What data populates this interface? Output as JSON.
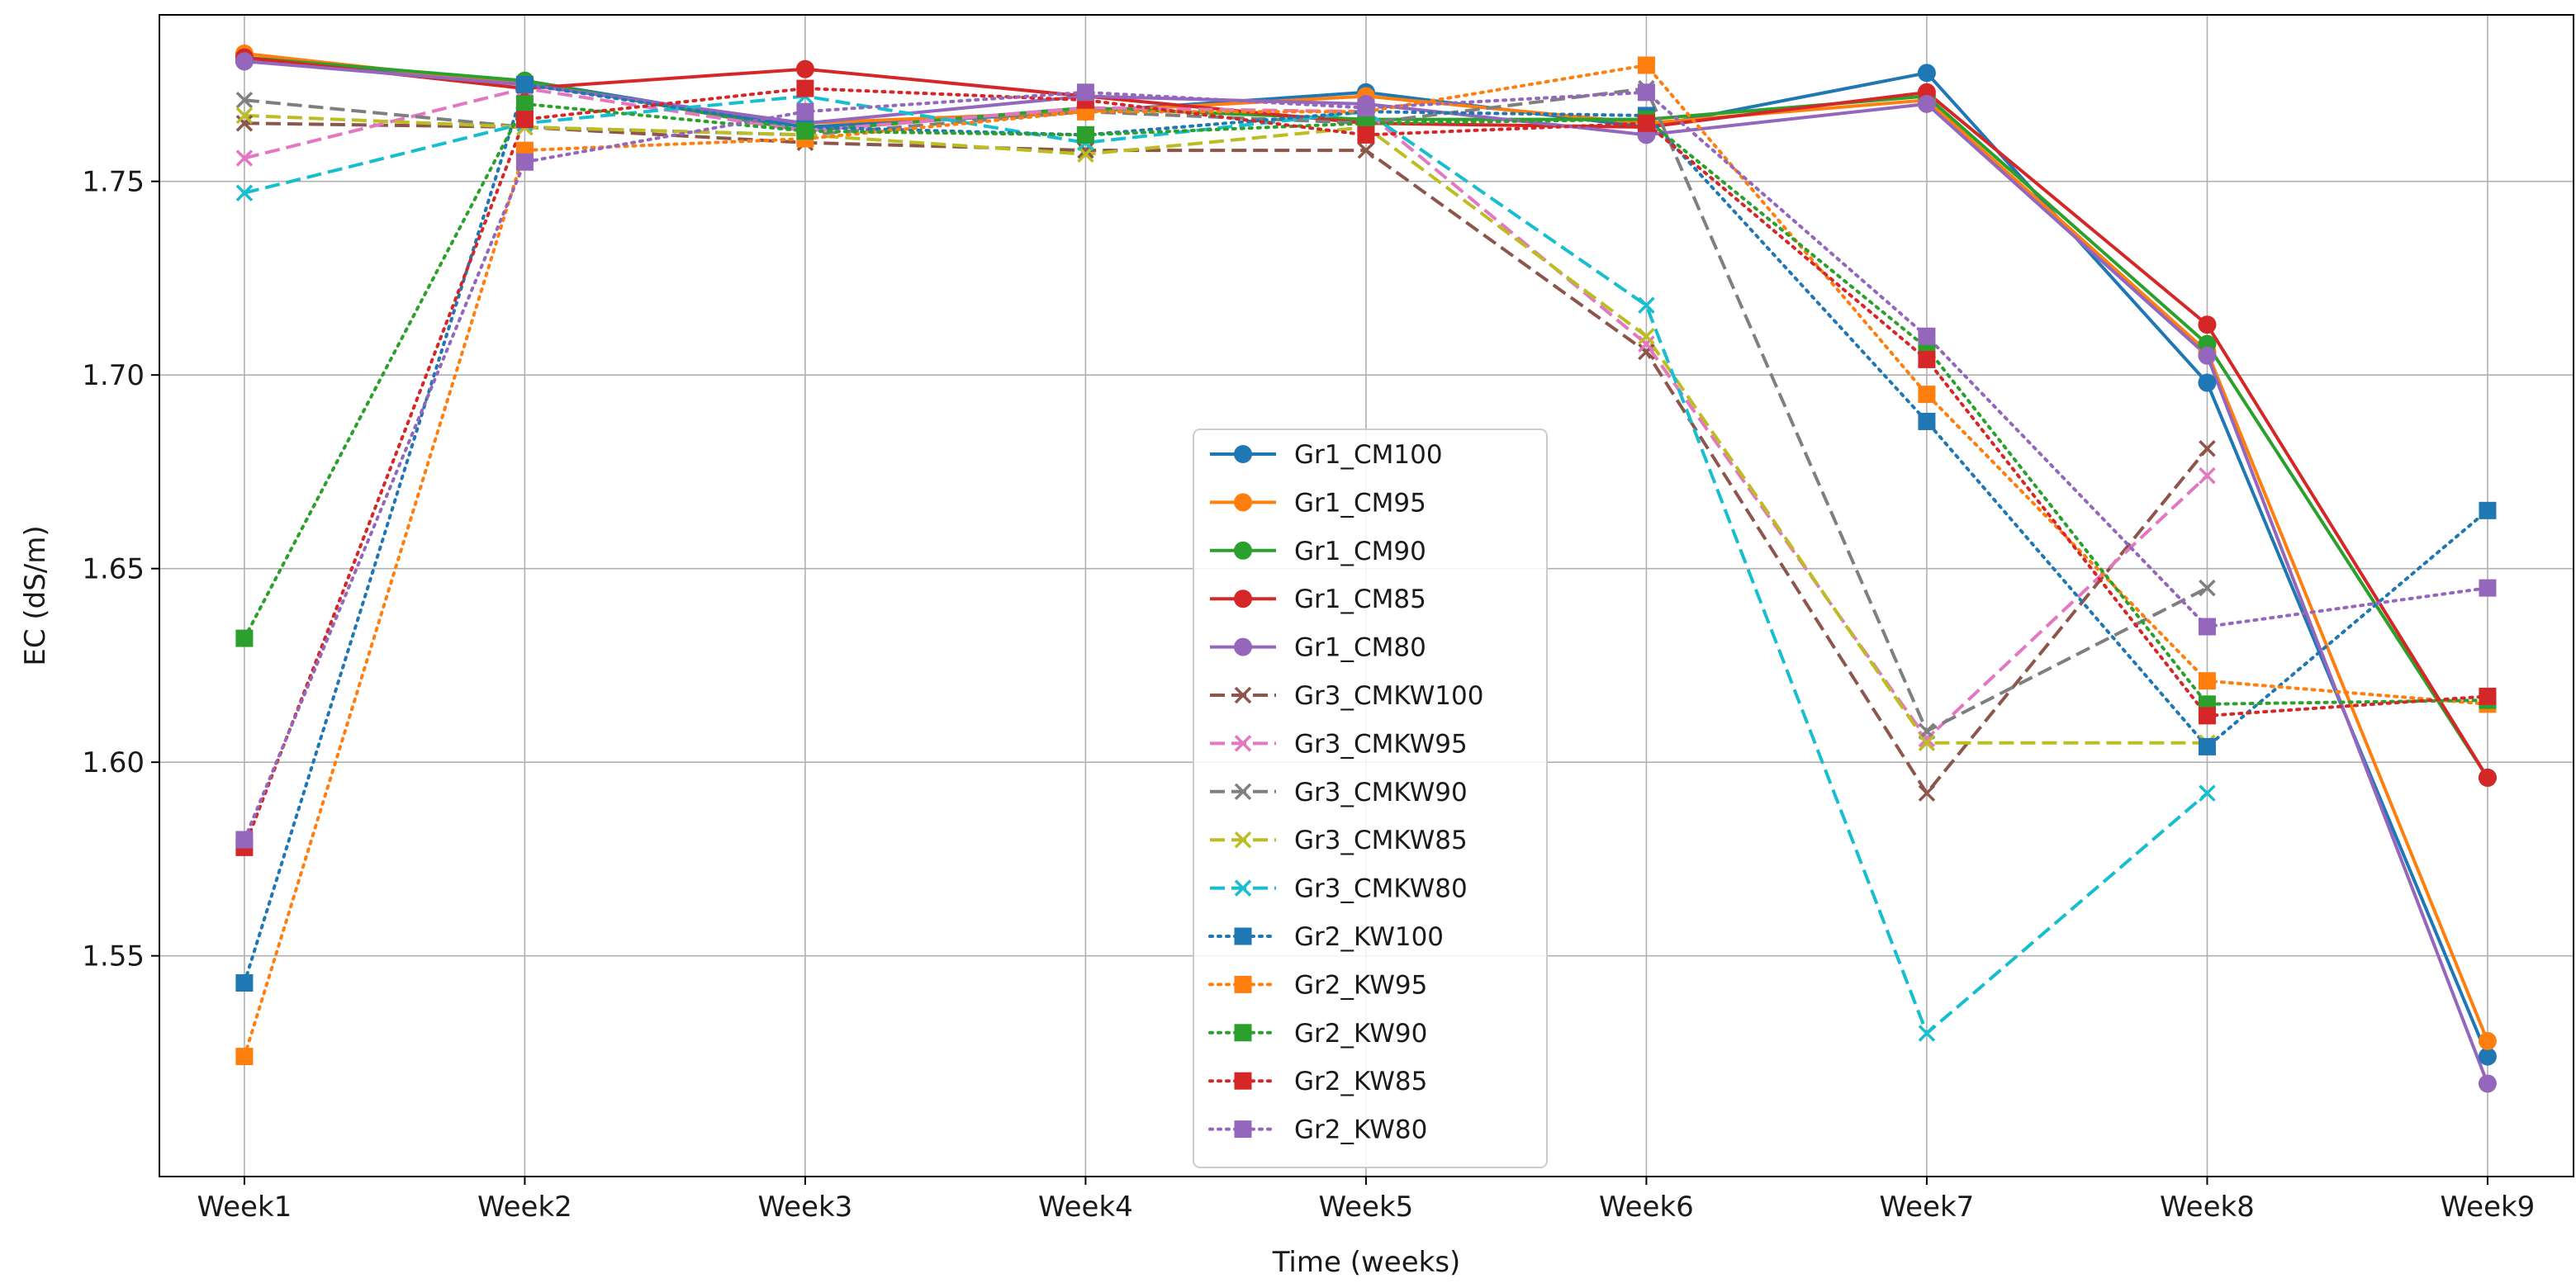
{
  "chart_data": {
    "type": "line",
    "title": "",
    "xlabel": "Time (weeks)",
    "ylabel": "EC (dS/m)",
    "categories": [
      "Week1",
      "Week2",
      "Week3",
      "Week4",
      "Week5",
      "Week6",
      "Week7",
      "Week8",
      "Week9"
    ],
    "ylim": [
      1.493,
      1.793
    ],
    "yticks": [
      1.55,
      1.6,
      1.65,
      1.7,
      1.75
    ],
    "ytick_labels": [
      "1.55",
      "1.60",
      "1.65",
      "1.70",
      "1.75"
    ],
    "grid": true,
    "legend_position": "center",
    "series": [
      {
        "name": "Gr1_CM100",
        "color": "#1f77b4",
        "linestyle": "solid",
        "marker": "circle",
        "values": [
          1.781,
          1.776,
          1.764,
          1.768,
          1.773,
          1.764,
          1.778,
          1.698,
          1.524
        ]
      },
      {
        "name": "Gr1_CM95",
        "color": "#ff7f0e",
        "linestyle": "solid",
        "marker": "circle",
        "values": [
          1.783,
          1.775,
          1.765,
          1.768,
          1.772,
          1.765,
          1.771,
          1.706,
          1.528
        ]
      },
      {
        "name": "Gr1_CM90",
        "color": "#2ca02c",
        "linestyle": "solid",
        "marker": "circle",
        "values": [
          1.782,
          1.776,
          1.763,
          1.769,
          1.766,
          1.766,
          1.772,
          1.708,
          1.596
        ]
      },
      {
        "name": "Gr1_CM85",
        "color": "#d62728",
        "linestyle": "solid",
        "marker": "circle",
        "values": [
          1.782,
          1.774,
          1.779,
          1.772,
          1.765,
          1.764,
          1.773,
          1.713,
          1.596
        ]
      },
      {
        "name": "Gr1_CM80",
        "color": "#9467bd",
        "linestyle": "solid",
        "marker": "circle",
        "values": [
          1.781,
          1.775,
          1.765,
          1.772,
          1.77,
          1.762,
          1.77,
          1.705,
          1.517
        ]
      },
      {
        "name": "Gr3_CMKW100",
        "color": "#8c564b",
        "linestyle": "dashed",
        "marker": "x",
        "values": [
          1.765,
          1.764,
          1.76,
          1.758,
          1.758,
          1.706,
          1.592,
          1.681,
          null
        ]
      },
      {
        "name": "Gr3_CMKW95",
        "color": "#e377c2",
        "linestyle": "dashed",
        "marker": "x",
        "values": [
          1.756,
          1.774,
          1.763,
          1.769,
          1.768,
          1.708,
          1.606,
          1.674,
          null
        ]
      },
      {
        "name": "Gr3_CMKW90",
        "color": "#7f7f7f",
        "linestyle": "dashed",
        "marker": "x",
        "values": [
          1.771,
          1.764,
          1.762,
          1.768,
          1.765,
          1.774,
          1.608,
          1.645,
          null
        ]
      },
      {
        "name": "Gr3_CMKW85",
        "color": "#bcbd22",
        "linestyle": "dashed",
        "marker": "x",
        "values": [
          1.767,
          1.764,
          1.762,
          1.757,
          1.764,
          1.71,
          1.605,
          1.605,
          null
        ]
      },
      {
        "name": "Gr3_CMKW80",
        "color": "#17becf",
        "linestyle": "dashed",
        "marker": "x",
        "values": [
          1.747,
          1.765,
          1.772,
          1.76,
          1.768,
          1.718,
          1.53,
          1.592,
          null
        ]
      },
      {
        "name": "Gr2_KW100",
        "color": "#1f77b4",
        "linestyle": "dotted",
        "marker": "square",
        "values": [
          1.543,
          1.775,
          1.764,
          1.762,
          1.768,
          1.767,
          1.688,
          1.604,
          1.665
        ]
      },
      {
        "name": "Gr2_KW95",
        "color": "#ff7f0e",
        "linestyle": "dotted",
        "marker": "square",
        "values": [
          1.524,
          1.758,
          1.761,
          1.768,
          1.768,
          1.78,
          1.695,
          1.621,
          1.615
        ]
      },
      {
        "name": "Gr2_KW90",
        "color": "#2ca02c",
        "linestyle": "dotted",
        "marker": "square",
        "values": [
          1.632,
          1.77,
          1.763,
          1.762,
          1.765,
          1.766,
          1.707,
          1.615,
          1.616
        ]
      },
      {
        "name": "Gr2_KW85",
        "color": "#d62728",
        "linestyle": "dotted",
        "marker": "square",
        "values": [
          1.578,
          1.766,
          1.774,
          1.771,
          1.762,
          1.765,
          1.704,
          1.612,
          1.617
        ]
      },
      {
        "name": "Gr2_KW80",
        "color": "#9467bd",
        "linestyle": "dotted",
        "marker": "square",
        "values": [
          1.58,
          1.755,
          1.768,
          1.773,
          1.769,
          1.773,
          1.71,
          1.635,
          1.645
        ]
      }
    ]
  }
}
